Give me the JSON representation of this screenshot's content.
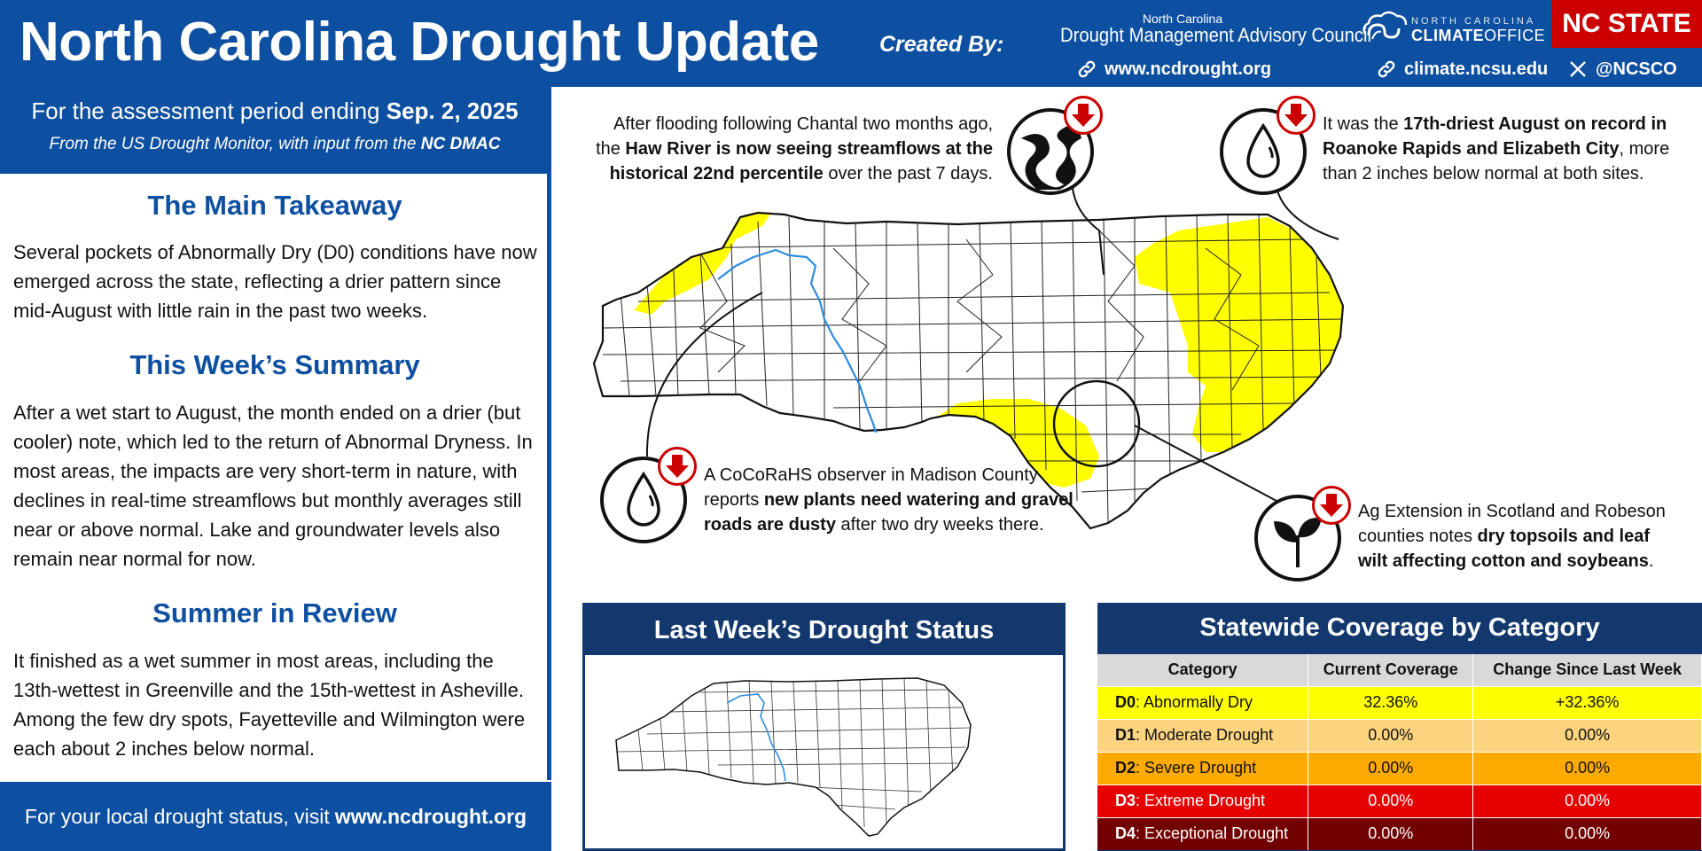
{
  "header": {
    "title": "North Carolina Drought Update",
    "created_by": "Created By:",
    "dmac_small": "North Carolina",
    "dmac_big": "Drought Management Advisory Council",
    "dmac_link": "www.ncdrought.org",
    "climate_link": "climate.ncsu.edu",
    "social_handle": "@NCSCO",
    "climate_office_small": "NORTH CAROLINA",
    "climate_office_big_1": "CLIMATE",
    "climate_office_big_2": "OFFICE",
    "ncstate": "NC STATE"
  },
  "period": {
    "prefix": "For the assessment period ending",
    "date": "Sep. 2, 2025",
    "source_prefix": "From the US Drought Monitor, with input from the",
    "source_bold": "NC DMAC"
  },
  "sections": [
    {
      "heading": "The Main Takeaway",
      "body": "Several pockets of Abnormally Dry (D0) conditions have now emerged across the state, reflecting a drier pattern since mid-August with little rain in the past two weeks."
    },
    {
      "heading": "This Week’s Summary",
      "body": "After a wet start to August, the month ended on a drier (but cooler) note, which led to the return of Abnormal Dryness. In most areas, the impacts are very short-term in nature, with declines in real-time streamflows but monthly averages still near or above normal. Lake and groundwater levels also remain near normal for now."
    },
    {
      "heading": "Summer in Review",
      "body": "It finished as a wet summer in most areas, including the 13th-wettest in Greenville and the 15th-wettest in Asheville. Among the few dry spots, Fayetteville and Wilmington were each about 2 inches below normal."
    }
  ],
  "footer": {
    "prefix": "For your local drought status, visit",
    "link": "www.ncdrought.org"
  },
  "callouts": {
    "haw": {
      "t1": "After flooding following Chantal two months ago,",
      "t2a": "the ",
      "t2b": "Haw River is now seeing streamflows at the",
      "t3a": "historical 22nd percentile",
      "t3b": " over the past 7 days."
    },
    "roanoke": {
      "t1a": "It was the ",
      "t1b": "17th-driest August on record in",
      "t2a": "Roanoke Rapids and Elizabeth City",
      "t2b": ", more",
      "t3": "than 2 inches below normal at both sites."
    },
    "madison": {
      "t1": "A CoCoRaHS observer in Madison County",
      "t2a": "reports ",
      "t2b": "new plants need watering and gravel",
      "t3a": "roads are dusty",
      "t3b": " after two dry weeks there."
    },
    "scotland": {
      "t1": "Ag Extension in Scotland and Robeson",
      "t2a": "counties notes ",
      "t2b": "dry topsoils and leaf",
      "t3a": "wilt affecting cotton and soybeans",
      "t3b": "."
    }
  },
  "icons": {
    "haw": "river-icon",
    "roanoke": "water-drop-icon",
    "madison": "water-drop-icon",
    "scotland": "plant-icon",
    "trend": "down-arrow-icon"
  },
  "last_week": {
    "title": "Last Week’s Drought Status"
  },
  "stats": {
    "title": "Statewide Coverage by Category",
    "headers": [
      "Category",
      "Current Coverage",
      "Change Since Last Week"
    ],
    "rows": [
      {
        "code": "D0",
        "label": ": Abnormally Dry",
        "current": "32.36%",
        "change": "+32.36%",
        "color": "#ffff00",
        "text_color": "#111111"
      },
      {
        "code": "D1",
        "label": ": Moderate Drought",
        "current": "0.00%",
        "change": "0.00%",
        "color": "#fcd37f",
        "text_color": "#111111"
      },
      {
        "code": "D2",
        "label": ": Severe Drought",
        "current": "0.00%",
        "change": "0.00%",
        "color": "#ffaa00",
        "text_color": "#111111"
      },
      {
        "code": "D3",
        "label": ": Extreme Drought",
        "current": "0.00%",
        "change": "0.00%",
        "color": "#e60000",
        "text_color": "#ffffff"
      },
      {
        "code": "D4",
        "label": ": Exceptional Drought",
        "current": "0.00%",
        "change": "0.00%",
        "color": "#730000",
        "text_color": "#ffffff"
      }
    ]
  },
  "colors": {
    "brand_blue": "#0d4fa0",
    "navy": "#13386e",
    "d0_yellow": "#ffff00",
    "ncstate_red": "#cc0000",
    "river_blue": "#2d8be0"
  }
}
